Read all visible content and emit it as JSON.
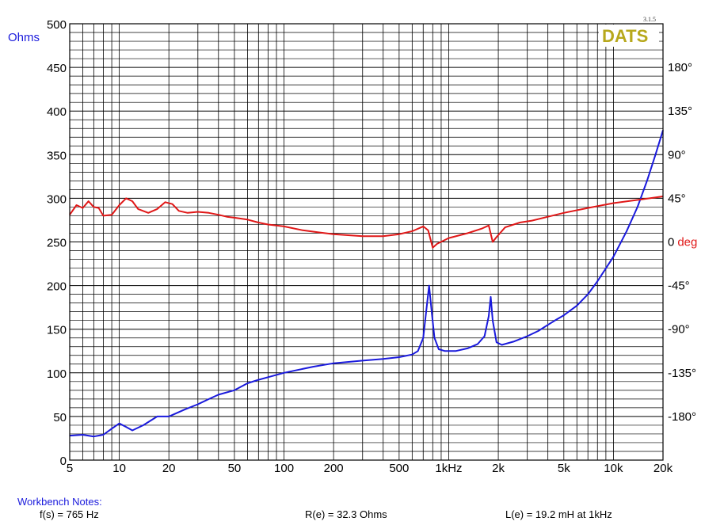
{
  "chart_data": {
    "type": "line",
    "x_scale": "log",
    "xlim": [
      5,
      20000
    ],
    "ylim_left": [
      0,
      500
    ],
    "ylim_right_deg": [
      -225,
      225
    ],
    "grid": true,
    "y_unit_left": "Ohms",
    "version": "3.1.5",
    "brand": "DATS",
    "x_tick_labels": [
      "5",
      "10",
      "20",
      "50",
      "100",
      "200",
      "500",
      "1kHz",
      "2k",
      "5k",
      "10k",
      "20k"
    ],
    "x_tick_values": [
      5,
      10,
      20,
      50,
      100,
      200,
      500,
      1000,
      2000,
      5000,
      10000,
      20000
    ],
    "y_left_ticks": [
      "0",
      "50",
      "100",
      "150",
      "200",
      "250",
      "300",
      "350",
      "400",
      "450",
      "500"
    ],
    "y_left_tick_values": [
      0,
      50,
      100,
      150,
      200,
      250,
      300,
      350,
      400,
      450,
      500
    ],
    "y_right_ticks": [
      "180°",
      "135°",
      "90°",
      "45°",
      "0",
      "-45°",
      "-90°",
      "-135°",
      "-180°"
    ],
    "y_right_tick_values": [
      180,
      135,
      90,
      45,
      0,
      -45,
      -90,
      -135,
      -180
    ],
    "y_right_unit": "deg",
    "series": [
      {
        "color": "#1a1adc",
        "axis": "left",
        "points": [
          [
            5,
            28
          ],
          [
            6,
            29
          ],
          [
            7,
            27
          ],
          [
            8,
            29
          ],
          [
            9,
            36
          ],
          [
            10,
            42
          ],
          [
            11,
            38
          ],
          [
            12,
            34
          ],
          [
            14,
            40
          ],
          [
            17,
            50
          ],
          [
            20,
            50
          ],
          [
            25,
            58
          ],
          [
            30,
            64
          ],
          [
            35,
            70
          ],
          [
            40,
            75
          ],
          [
            50,
            80
          ],
          [
            60,
            88
          ],
          [
            70,
            92
          ],
          [
            80,
            95
          ],
          [
            100,
            100
          ],
          [
            150,
            107
          ],
          [
            200,
            111
          ],
          [
            300,
            114
          ],
          [
            400,
            116
          ],
          [
            500,
            118
          ],
          [
            600,
            121
          ],
          [
            650,
            125
          ],
          [
            700,
            140
          ],
          [
            730,
            170
          ],
          [
            760,
            200
          ],
          [
            790,
            168
          ],
          [
            820,
            140
          ],
          [
            870,
            127
          ],
          [
            950,
            125
          ],
          [
            1100,
            125
          ],
          [
            1300,
            128
          ],
          [
            1500,
            133
          ],
          [
            1650,
            142
          ],
          [
            1750,
            165
          ],
          [
            1800,
            187
          ],
          [
            1850,
            160
          ],
          [
            1950,
            135
          ],
          [
            2100,
            132
          ],
          [
            2500,
            136
          ],
          [
            3000,
            142
          ],
          [
            3500,
            148
          ],
          [
            4000,
            155
          ],
          [
            4500,
            161
          ],
          [
            5000,
            166
          ],
          [
            6000,
            177
          ],
          [
            7000,
            190
          ],
          [
            8000,
            205
          ],
          [
            10000,
            233
          ],
          [
            12000,
            262
          ],
          [
            14000,
            290
          ],
          [
            16000,
            320
          ],
          [
            18000,
            350
          ],
          [
            20000,
            378
          ]
        ]
      },
      {
        "color": "#e01818",
        "axis": "right",
        "points": [
          [
            5,
            28
          ],
          [
            5.5,
            38
          ],
          [
            6,
            35
          ],
          [
            6.5,
            42
          ],
          [
            7,
            36
          ],
          [
            7.5,
            35
          ],
          [
            8,
            27
          ],
          [
            9,
            28
          ],
          [
            10,
            38
          ],
          [
            11,
            45
          ],
          [
            12,
            42
          ],
          [
            13,
            34
          ],
          [
            15,
            30
          ],
          [
            17,
            34
          ],
          [
            19,
            41
          ],
          [
            21,
            39
          ],
          [
            23,
            32
          ],
          [
            26,
            30
          ],
          [
            30,
            31
          ],
          [
            35,
            30
          ],
          [
            40,
            28
          ],
          [
            45,
            26
          ],
          [
            50,
            25
          ],
          [
            60,
            23
          ],
          [
            70,
            20
          ],
          [
            80,
            18
          ],
          [
            100,
            16
          ],
          [
            130,
            12
          ],
          [
            160,
            10
          ],
          [
            200,
            8
          ],
          [
            300,
            6
          ],
          [
            400,
            6
          ],
          [
            500,
            8
          ],
          [
            600,
            11
          ],
          [
            700,
            16
          ],
          [
            750,
            12
          ],
          [
            800,
            -6
          ],
          [
            850,
            -2
          ],
          [
            1000,
            4
          ],
          [
            1300,
            9
          ],
          [
            1600,
            14
          ],
          [
            1750,
            17
          ],
          [
            1850,
            0
          ],
          [
            1950,
            5
          ],
          [
            2200,
            15
          ],
          [
            2700,
            20
          ],
          [
            3200,
            22
          ],
          [
            4000,
            26
          ],
          [
            5000,
            30
          ],
          [
            7000,
            35
          ],
          [
            10000,
            40
          ],
          [
            15000,
            44
          ],
          [
            20000,
            47
          ]
        ]
      }
    ]
  },
  "notes": {
    "title": "Workbench Notes:",
    "fs": "f(s) = 765 Hz",
    "re": "R(e) = 32.3 Ohms",
    "le": "L(e) = 19.2 mH at 1kHz"
  }
}
